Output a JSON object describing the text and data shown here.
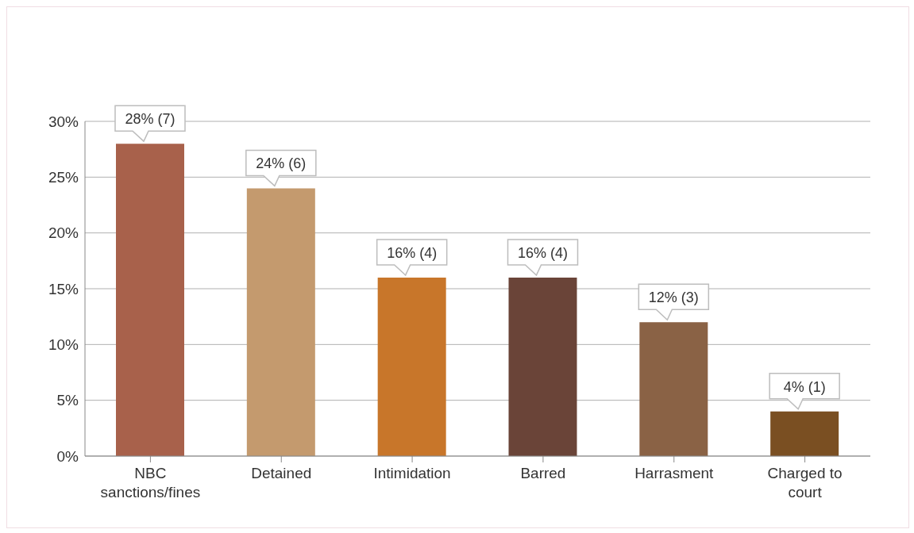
{
  "chart_data": {
    "type": "bar",
    "categories": [
      "NBC sanctions/fines",
      "Detained",
      "Intimidation",
      "Barred",
      "Harrasment",
      "Charged to court"
    ],
    "values": [
      28,
      24,
      16,
      16,
      12,
      4
    ],
    "colors": [
      "#a8614b",
      "#c49a6e",
      "#c8762a",
      "#6a4438",
      "#8a6245",
      "#7a4f22"
    ],
    "value_labels": [
      "28% (7)",
      "24% (6)",
      "16% (4)",
      "16% (4)",
      "12% (3)",
      "4% (1)"
    ],
    "ylim": [
      0,
      30
    ],
    "yticks": [
      {
        "value": 0,
        "label": "0%"
      },
      {
        "value": 5,
        "label": "5%"
      },
      {
        "value": 10,
        "label": "10%"
      },
      {
        "value": 15,
        "label": "15%"
      },
      {
        "value": 20,
        "label": "20%"
      },
      {
        "value": 25,
        "label": "25%"
      },
      {
        "value": 30,
        "label": "30%"
      }
    ],
    "grid": "y",
    "legend": false
  }
}
